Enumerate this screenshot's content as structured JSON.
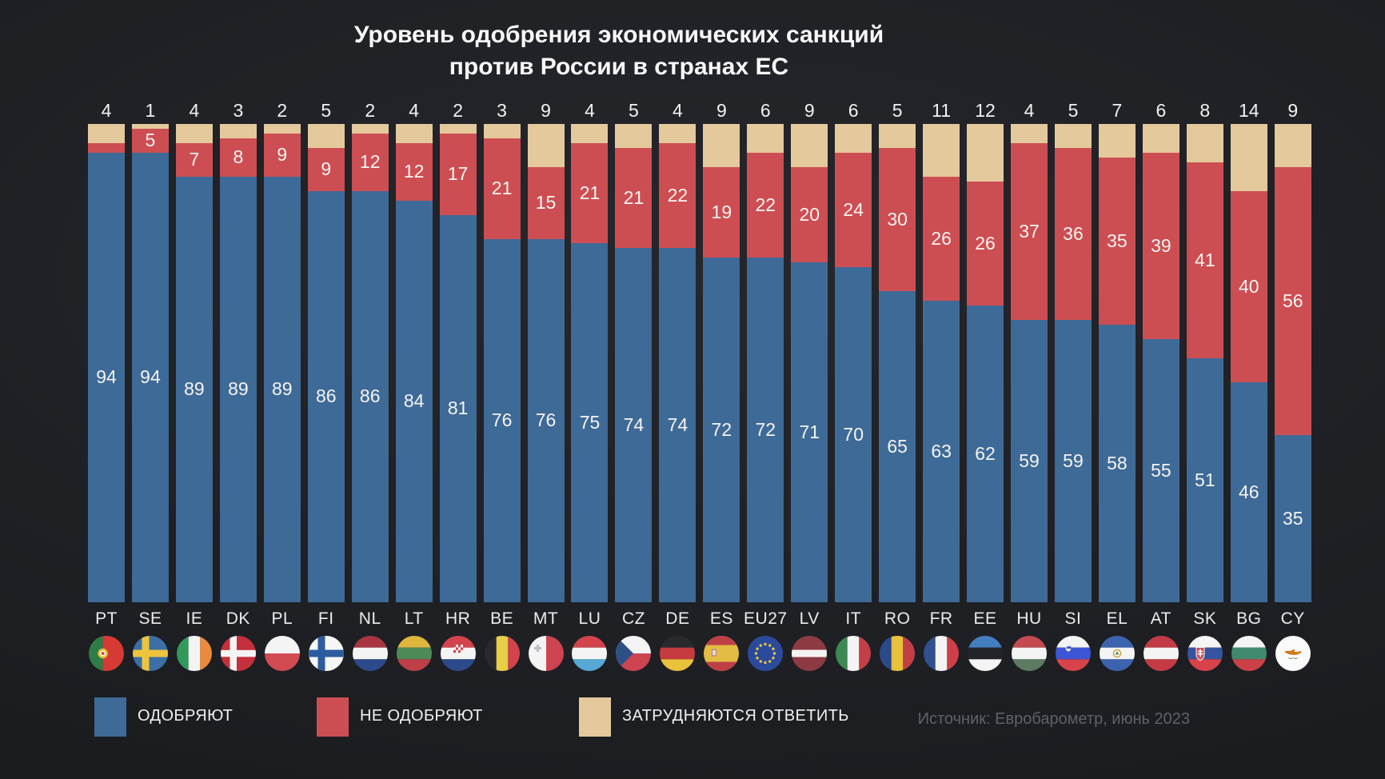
{
  "title": {
    "line1": "Уровень одобрения экономических санкций",
    "line2": "против России в странах ЕС"
  },
  "source": "Источник: Евробарометр, июнь 2023",
  "legend": {
    "items": [
      {
        "label": "ОДОБРЯЮТ",
        "color": "#3e6a97"
      },
      {
        "label": "НЕ ОДОБРЯЮТ",
        "color": "#cd4e52"
      },
      {
        "label": "ЗАТРУДНЯЮТСЯ ОТВЕТИТЬ",
        "color": "#e4c99c"
      }
    ]
  },
  "colors": {
    "approve": "#3e6a97",
    "disapprove": "#cd4e52",
    "dont_know": "#e4c99c",
    "background": "#1b1d21",
    "text": "#f2f2f2"
  },
  "chart_data": {
    "type": "bar",
    "stacked": true,
    "orientation": "vertical",
    "unit": "percent",
    "title": "Уровень одобрения экономических санкций против России в странах ЕС",
    "categories": [
      "PT",
      "SE",
      "IE",
      "DK",
      "PL",
      "FI",
      "NL",
      "LT",
      "HR",
      "BE",
      "MT",
      "LU",
      "CZ",
      "DE",
      "ES",
      "EU27",
      "LV",
      "IT",
      "RO",
      "FR",
      "EE",
      "HU",
      "SI",
      "EL",
      "AT",
      "SK",
      "BG",
      "CY"
    ],
    "series": [
      {
        "name": "ОДОБРЯЮТ",
        "color": "#3e6a97",
        "values": [
          94,
          94,
          89,
          89,
          89,
          86,
          86,
          84,
          81,
          76,
          76,
          75,
          74,
          74,
          72,
          72,
          71,
          70,
          65,
          63,
          62,
          59,
          59,
          58,
          55,
          51,
          46,
          35
        ]
      },
      {
        "name": "НЕ ОДОБРЯЮТ",
        "color": "#cd4e52",
        "values": [
          2,
          5,
          7,
          8,
          9,
          9,
          12,
          12,
          17,
          21,
          15,
          21,
          21,
          22,
          19,
          22,
          20,
          24,
          30,
          26,
          26,
          37,
          36,
          35,
          39,
          41,
          40,
          56
        ]
      },
      {
        "name": "ЗАТРУДНЯЮТСЯ ОТВЕТИТЬ",
        "color": "#e4c99c",
        "values": [
          4,
          1,
          4,
          3,
          2,
          5,
          2,
          4,
          2,
          3,
          9,
          4,
          5,
          4,
          9,
          6,
          9,
          6,
          5,
          11,
          12,
          4,
          5,
          7,
          6,
          8,
          14,
          9
        ]
      }
    ],
    "value_labels": {
      "dont_know": "above each bar",
      "disapprove": "inside red segment (hidden for PT where value is 2)",
      "approve": "inside blue segment"
    },
    "legend_position": "bottom",
    "grid": false,
    "ylim": [
      0,
      100
    ]
  },
  "countries": [
    {
      "code": "PT",
      "flag": "pt"
    },
    {
      "code": "SE",
      "flag": "se"
    },
    {
      "code": "IE",
      "flag": "ie"
    },
    {
      "code": "DK",
      "flag": "dk"
    },
    {
      "code": "PL",
      "flag": "pl"
    },
    {
      "code": "FI",
      "flag": "fi"
    },
    {
      "code": "NL",
      "flag": "nl"
    },
    {
      "code": "LT",
      "flag": "lt"
    },
    {
      "code": "HR",
      "flag": "hr"
    },
    {
      "code": "BE",
      "flag": "be"
    },
    {
      "code": "MT",
      "flag": "mt"
    },
    {
      "code": "LU",
      "flag": "lu"
    },
    {
      "code": "CZ",
      "flag": "cz"
    },
    {
      "code": "DE",
      "flag": "de"
    },
    {
      "code": "ES",
      "flag": "es"
    },
    {
      "code": "EU27",
      "flag": "eu"
    },
    {
      "code": "LV",
      "flag": "lv"
    },
    {
      "code": "IT",
      "flag": "it"
    },
    {
      "code": "RO",
      "flag": "ro"
    },
    {
      "code": "FR",
      "flag": "fr"
    },
    {
      "code": "EE",
      "flag": "ee"
    },
    {
      "code": "HU",
      "flag": "hu"
    },
    {
      "code": "SI",
      "flag": "si"
    },
    {
      "code": "EL",
      "flag": "sv"
    },
    {
      "code": "AT",
      "flag": "at"
    },
    {
      "code": "SK",
      "flag": "sk"
    },
    {
      "code": "BG",
      "flag": "bg"
    },
    {
      "code": "CY",
      "flag": "cy"
    }
  ]
}
